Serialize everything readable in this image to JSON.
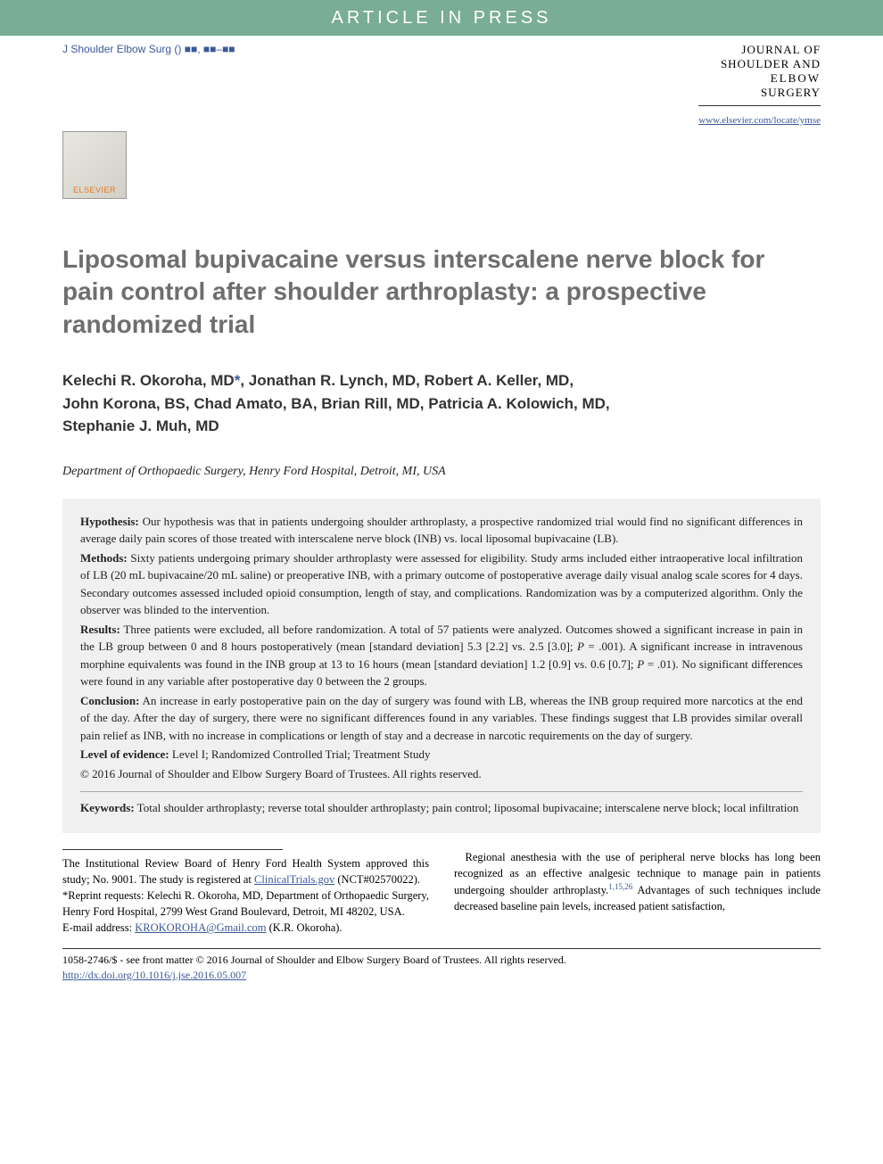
{
  "banner": "ARTICLE IN PRESS",
  "citation": "J Shoulder Elbow Surg () ■■, ■■–■■",
  "journal": {
    "line1": "JOURNAL OF",
    "line2": "SHOULDER AND",
    "line3": "ELBOW",
    "line4": "SURGERY",
    "url": "www.elsevier.com/locate/ymse"
  },
  "logo_text": "ELSEVIER",
  "title": "Liposomal bupivacaine versus interscalene nerve block for pain control after shoulder arthroplasty: a prospective randomized trial",
  "authors_html": "Kelechi R. Okoroha, MD*, Jonathan R. Lynch, MD, Robert A. Keller, MD, John Korona, BS, Chad Amato, BA, Brian Rill, MD, Patricia A. Kolowich, MD, Stephanie J. Muh, MD",
  "affiliation": "Department of Orthopaedic Surgery, Henry Ford Hospital, Detroit, MI, USA",
  "abstract": {
    "hypothesis_label": "Hypothesis:",
    "hypothesis": " Our hypothesis was that in patients undergoing shoulder arthroplasty, a prospective randomized trial would find no significant differences in average daily pain scores of those treated with interscalene nerve block (INB) vs. local liposomal bupivacaine (LB).",
    "methods_label": "Methods:",
    "methods": " Sixty patients undergoing primary shoulder arthroplasty were assessed for eligibility. Study arms included either intraoperative local infiltration of LB (20 mL bupivacaine/20 mL saline) or preoperative INB, with a primary outcome of postoperative average daily visual analog scale scores for 4 days. Secondary outcomes assessed included opioid consumption, length of stay, and complications. Randomization was by a computerized algorithm. Only the observer was blinded to the intervention.",
    "results_label": "Results:",
    "results_a": " Three patients were excluded, all before randomization. A total of 57 patients were analyzed. Outcomes showed a significant increase in pain in the LB group between 0 and 8 hours postoperatively (mean [standard deviation] 5.3 [2.2] vs. 2.5 [3.0]; ",
    "results_p1": "P",
    "results_b": " = .001). A significant increase in intravenous morphine equivalents was found in the INB group at 13 to 16 hours (mean [standard deviation] 1.2 [0.9] vs. 0.6 [0.7]; ",
    "results_p2": "P",
    "results_c": " = .01). No significant differences were found in any variable after postoperative day 0 between the 2 groups.",
    "conclusion_label": "Conclusion:",
    "conclusion": " An increase in early postoperative pain on the day of surgery was found with LB, whereas the INB group required more narcotics at the end of the day. After the day of surgery, there were no significant differences found in any variables. These findings suggest that LB provides similar overall pain relief as INB, with no increase in complications or length of stay and a decrease in narcotic requirements on the day of surgery.",
    "loe_label": "Level of evidence:",
    "loe": " Level I; Randomized Controlled Trial; Treatment Study",
    "copyright": "© 2016 Journal of Shoulder and Elbow Surgery Board of Trustees. All rights reserved.",
    "keywords_label": "Keywords:",
    "keywords": " Total shoulder arthroplasty; reverse total shoulder arthroplasty; pain control; liposomal bupivacaine; interscalene nerve block; local infiltration"
  },
  "footnotes": {
    "irb_a": "The Institutional Review Board of Henry Ford Health System approved this study; No. 9001. The study is registered at ",
    "irb_link": "ClinicalTrials.gov",
    "irb_b": " (NCT#02570022).",
    "reprint": "*Reprint requests: Kelechi R. Okoroha, MD, Department of Orthopaedic Surgery, Henry Ford Hospital, 2799 West Grand Boulevard, Detroit, MI 48202, USA.",
    "email_label": "E-mail address: ",
    "email": "KROKOROHA@Gmail.com",
    "email_suffix": " (K.R. Okoroha)."
  },
  "intro": {
    "indent": " Regional anesthesia with the use of peripheral nerve blocks has long been recognized as an effective analgesic technique to manage pain in patients undergoing shoulder arthroplasty.",
    "refs": "1,15,26",
    "cont": " Advantages of such techniques include decreased baseline pain levels, increased patient satisfaction,"
  },
  "footer": {
    "line1": "1058-2746/$ - see front matter © 2016 Journal of Shoulder and Elbow Surgery Board of Trustees. All rights reserved.",
    "doi": "http://dx.doi.org/10.1016/j.jse.2016.05.007"
  },
  "colors": {
    "banner_bg": "#7aad95",
    "link": "#3b5898",
    "title_gray": "#6e6e6e",
    "abstract_bg": "#f0f0f0"
  }
}
